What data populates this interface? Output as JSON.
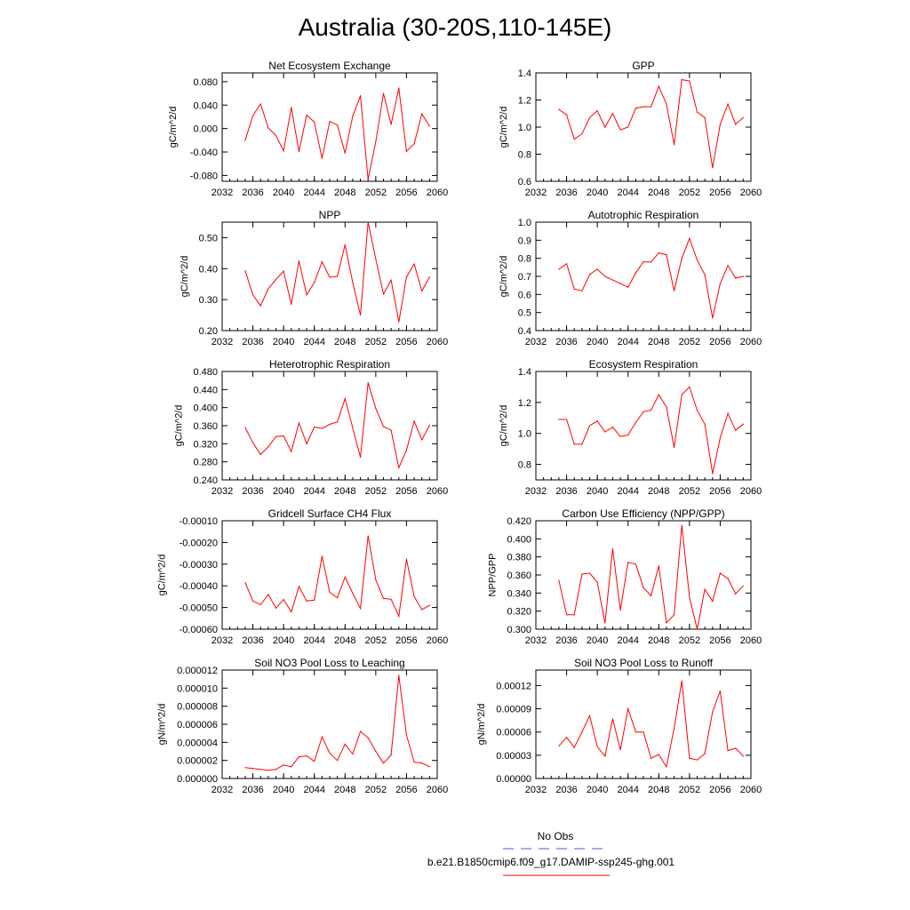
{
  "figure": {
    "title": "Australia (30-20S,110-145E)",
    "line_color": "#ff0000",
    "obs_color": "#5555cc"
  },
  "legend": {
    "obs_label": "No Obs",
    "model_label": "b.e21.B1850cmip6.f09_g17.DAMIP-ssp245-ghg.001"
  },
  "chart_data": [
    {
      "type": "line",
      "title": "Net Ecosystem Exchange",
      "ylabel": "gC/m^2/d",
      "xlim": [
        2032,
        2060
      ],
      "ylim": [
        -0.09,
        0.095
      ],
      "xticks": [
        "2032",
        "2036",
        "2040",
        "2044",
        "2048",
        "2052",
        "2056",
        "2060"
      ],
      "yticks": [
        "0.080",
        "0.040",
        "0.000",
        "-0.040",
        "-0.080"
      ],
      "ytick_values": [
        0.08,
        0.04,
        0.0,
        -0.04,
        -0.08
      ],
      "x": [
        2035,
        2036,
        2037,
        2038,
        2039,
        2040,
        2041,
        2042,
        2043,
        2044,
        2045,
        2046,
        2047,
        2048,
        2049,
        2050,
        2051,
        2052,
        2053,
        2054,
        2055,
        2056,
        2057,
        2058,
        2059
      ],
      "values": [
        -0.02,
        0.022,
        0.042,
        0.001,
        -0.012,
        -0.038,
        0.036,
        -0.039,
        0.023,
        0.011,
        -0.051,
        0.012,
        0.006,
        -0.042,
        0.021,
        0.056,
        -0.087,
        -0.022,
        0.06,
        0.007,
        0.069,
        -0.039,
        -0.026,
        0.025,
        0.004
      ]
    },
    {
      "type": "line",
      "title": "GPP",
      "ylabel": "gC/m^2/d",
      "xlim": [
        2032,
        2060
      ],
      "ylim": [
        0.6,
        1.4
      ],
      "xticks": [
        "2032",
        "2036",
        "2040",
        "2044",
        "2048",
        "2052",
        "2056",
        "2060"
      ],
      "yticks": [
        "1.4",
        "1.2",
        "1.0",
        "0.8",
        "0.6"
      ],
      "ytick_values": [
        1.4,
        1.2,
        1.0,
        0.8,
        0.6
      ],
      "x": [
        2035,
        2036,
        2037,
        2038,
        2039,
        2040,
        2041,
        2042,
        2043,
        2044,
        2045,
        2046,
        2047,
        2048,
        2049,
        2050,
        2051,
        2052,
        2053,
        2054,
        2055,
        2056,
        2057,
        2058,
        2059
      ],
      "values": [
        1.13,
        1.09,
        0.91,
        0.95,
        1.07,
        1.12,
        1.0,
        1.1,
        0.98,
        1.0,
        1.14,
        1.15,
        1.15,
        1.3,
        1.17,
        0.87,
        1.35,
        1.34,
        1.11,
        1.07,
        0.7,
        1.02,
        1.17,
        1.02,
        1.07
      ]
    },
    {
      "type": "line",
      "title": "NPP",
      "ylabel": "gC/m^2/d",
      "xlim": [
        2032,
        2060
      ],
      "ylim": [
        0.2,
        0.55
      ],
      "xticks": [
        "2032",
        "2036",
        "2040",
        "2044",
        "2048",
        "2052",
        "2056",
        "2060"
      ],
      "yticks": [
        "0.50",
        "0.40",
        "0.30",
        "0.20"
      ],
      "ytick_values": [
        0.5,
        0.4,
        0.3,
        0.2
      ],
      "x": [
        2035,
        2036,
        2037,
        2038,
        2039,
        2040,
        2041,
        2042,
        2043,
        2044,
        2045,
        2046,
        2047,
        2048,
        2049,
        2050,
        2051,
        2052,
        2053,
        2054,
        2055,
        2056,
        2057,
        2058,
        2059
      ],
      "values": [
        0.393,
        0.315,
        0.28,
        0.335,
        0.365,
        0.392,
        0.285,
        0.425,
        0.315,
        0.355,
        0.422,
        0.372,
        0.375,
        0.477,
        0.355,
        0.25,
        0.55,
        0.43,
        0.318,
        0.363,
        0.228,
        0.373,
        0.415,
        0.328,
        0.373
      ]
    },
    {
      "type": "line",
      "title": "Autotrophic Respiration",
      "ylabel": "gC/m^2/d",
      "xlim": [
        2032,
        2060
      ],
      "ylim": [
        0.4,
        1.0
      ],
      "xticks": [
        "2032",
        "2036",
        "2040",
        "2044",
        "2048",
        "2052",
        "2056",
        "2060"
      ],
      "yticks": [
        "1.0",
        "0.9",
        "0.8",
        "0.7",
        "0.6",
        "0.5",
        "0.4"
      ],
      "ytick_values": [
        1.0,
        0.9,
        0.8,
        0.7,
        0.6,
        0.5,
        0.4
      ],
      "x": [
        2035,
        2036,
        2037,
        2038,
        2039,
        2040,
        2041,
        2042,
        2043,
        2044,
        2045,
        2046,
        2047,
        2048,
        2049,
        2050,
        2051,
        2052,
        2053,
        2054,
        2055,
        2056,
        2057,
        2058,
        2059
      ],
      "values": [
        0.74,
        0.77,
        0.63,
        0.62,
        0.71,
        0.74,
        0.7,
        0.68,
        0.66,
        0.64,
        0.72,
        0.78,
        0.78,
        0.83,
        0.82,
        0.62,
        0.8,
        0.91,
        0.79,
        0.71,
        0.47,
        0.66,
        0.76,
        0.69,
        0.7
      ]
    },
    {
      "type": "line",
      "title": "Heterotrophic Respiration",
      "ylabel": "gC/m^2/d",
      "xlim": [
        2032,
        2060
      ],
      "ylim": [
        0.24,
        0.48
      ],
      "xticks": [
        "2032",
        "2036",
        "2040",
        "2044",
        "2048",
        "2052",
        "2056",
        "2060"
      ],
      "yticks": [
        "0.480",
        "0.440",
        "0.400",
        "0.360",
        "0.320",
        "0.280",
        "0.240"
      ],
      "ytick_values": [
        0.48,
        0.44,
        0.4,
        0.36,
        0.32,
        0.28,
        0.24
      ],
      "x": [
        2035,
        2036,
        2037,
        2038,
        2039,
        2040,
        2041,
        2042,
        2043,
        2044,
        2045,
        2046,
        2047,
        2048,
        2049,
        2050,
        2051,
        2052,
        2053,
        2054,
        2055,
        2056,
        2057,
        2058,
        2059
      ],
      "values": [
        0.356,
        0.322,
        0.296,
        0.313,
        0.336,
        0.337,
        0.303,
        0.366,
        0.32,
        0.357,
        0.354,
        0.363,
        0.368,
        0.42,
        0.355,
        0.29,
        0.455,
        0.398,
        0.358,
        0.35,
        0.267,
        0.306,
        0.37,
        0.329,
        0.361
      ]
    },
    {
      "type": "line",
      "title": "Ecosystem Respiration",
      "ylabel": "gC/m^2/d",
      "xlim": [
        2032,
        2060
      ],
      "ylim": [
        0.7,
        1.4
      ],
      "xticks": [
        "2032",
        "2036",
        "2040",
        "2044",
        "2048",
        "2052",
        "2056",
        "2060"
      ],
      "yticks": [
        "1.4",
        "1.2",
        "1.0",
        "0.8"
      ],
      "ytick_values": [
        1.4,
        1.2,
        1.0,
        0.8
      ],
      "x": [
        2035,
        2036,
        2037,
        2038,
        2039,
        2040,
        2041,
        2042,
        2043,
        2044,
        2045,
        2046,
        2047,
        2048,
        2049,
        2050,
        2051,
        2052,
        2053,
        2054,
        2055,
        2056,
        2057,
        2058,
        2059
      ],
      "values": [
        1.09,
        1.09,
        0.93,
        0.93,
        1.05,
        1.08,
        1.01,
        1.04,
        0.98,
        0.99,
        1.07,
        1.14,
        1.15,
        1.25,
        1.17,
        0.91,
        1.25,
        1.3,
        1.15,
        1.06,
        0.74,
        0.97,
        1.13,
        1.02,
        1.06
      ]
    },
    {
      "type": "line",
      "title": "Gridcell Surface CH4 Flux",
      "ylabel": "gC/m^2/d",
      "xlim": [
        2032,
        2060
      ],
      "ylim": [
        -0.0006,
        -0.0001
      ],
      "xticks": [
        "2032",
        "2036",
        "2040",
        "2044",
        "2048",
        "2052",
        "2056",
        "2060"
      ],
      "yticks": [
        "-0.00010",
        "-0.00020",
        "-0.00030",
        "-0.00040",
        "-0.00050",
        "-0.00060"
      ],
      "ytick_values": [
        -0.0001,
        -0.0002,
        -0.0003,
        -0.0004,
        -0.0005,
        -0.0006
      ],
      "x": [
        2035,
        2036,
        2037,
        2038,
        2039,
        2040,
        2041,
        2042,
        2043,
        2044,
        2045,
        2046,
        2047,
        2048,
        2049,
        2050,
        2051,
        2052,
        2053,
        2054,
        2055,
        2056,
        2057,
        2058,
        2059
      ],
      "values": [
        -0.000385,
        -0.00047,
        -0.000487,
        -0.00044,
        -0.000503,
        -0.000463,
        -0.00052,
        -0.000403,
        -0.00047,
        -0.000466,
        -0.000264,
        -0.00043,
        -0.000455,
        -0.00036,
        -0.000434,
        -0.000505,
        -0.00017,
        -0.000373,
        -0.000458,
        -0.000462,
        -0.00054,
        -0.000277,
        -0.00045,
        -0.00051,
        -0.00049
      ]
    },
    {
      "type": "line",
      "title": "Carbon Use Efficiency (NPP/GPP)",
      "ylabel": "NPP/GPP",
      "xlim": [
        2032,
        2060
      ],
      "ylim": [
        0.3,
        0.42
      ],
      "xticks": [
        "2032",
        "2036",
        "2040",
        "2044",
        "2048",
        "2052",
        "2056",
        "2060"
      ],
      "yticks": [
        "0.420",
        "0.400",
        "0.380",
        "0.360",
        "0.340",
        "0.320",
        "0.300"
      ],
      "ytick_values": [
        0.42,
        0.4,
        0.38,
        0.36,
        0.34,
        0.32,
        0.3
      ],
      "x": [
        2035,
        2036,
        2037,
        2038,
        2039,
        2040,
        2041,
        2042,
        2043,
        2044,
        2045,
        2046,
        2047,
        2048,
        2049,
        2050,
        2051,
        2052,
        2053,
        2054,
        2055,
        2056,
        2057,
        2058,
        2059
      ],
      "values": [
        0.354,
        0.316,
        0.316,
        0.361,
        0.362,
        0.352,
        0.307,
        0.389,
        0.321,
        0.374,
        0.372,
        0.346,
        0.337,
        0.37,
        0.307,
        0.316,
        0.415,
        0.335,
        0.3,
        0.344,
        0.331,
        0.362,
        0.356,
        0.339,
        0.348
      ]
    },
    {
      "type": "line",
      "title": "Soil NO3 Pool Loss to Leaching",
      "ylabel": "gN/m^2/d",
      "xlim": [
        2032,
        2060
      ],
      "ylim": [
        0.0,
        1.2e-05
      ],
      "xticks": [
        "2032",
        "2036",
        "2040",
        "2044",
        "2048",
        "2052",
        "2056",
        "2060"
      ],
      "yticks": [
        "0.000012",
        "0.000010",
        "0.000008",
        "0.000006",
        "0.000004",
        "0.000002",
        "0.000000"
      ],
      "ytick_values": [
        1.2e-05,
        1e-05,
        8e-06,
        6e-06,
        4e-06,
        2e-06,
        0.0
      ],
      "x": [
        2035,
        2036,
        2037,
        2038,
        2039,
        2040,
        2041,
        2042,
        2043,
        2044,
        2045,
        2046,
        2047,
        2048,
        2049,
        2050,
        2051,
        2052,
        2053,
        2054,
        2055,
        2056,
        2057,
        2058,
        2059
      ],
      "values": [
        1.2e-06,
        1.1e-06,
        1e-06,
        9e-07,
        1e-06,
        1.5e-06,
        1.3e-06,
        2.4e-06,
        2.5e-06,
        1.9e-06,
        4.6e-06,
        2.8e-06,
        2e-06,
        3.8e-06,
        2.7e-06,
        5.2e-06,
        4.5e-06,
        3e-06,
        1.7e-06,
        2.6e-06,
        1.14e-05,
        4.8e-06,
        1.8e-06,
        1.7e-06,
        1.3e-06
      ]
    },
    {
      "type": "line",
      "title": "Soil NO3 Pool Loss to Runoff",
      "ylabel": "gN/m^2/d",
      "xlim": [
        2032,
        2060
      ],
      "ylim": [
        0.0,
        0.00014
      ],
      "xticks": [
        "2032",
        "2036",
        "2040",
        "2044",
        "2048",
        "2052",
        "2056",
        "2060"
      ],
      "yticks": [
        "0.00012",
        "0.00009",
        "0.00006",
        "0.00003",
        "0.00000"
      ],
      "ytick_values": [
        0.00012,
        9e-05,
        6e-05,
        3e-05,
        0.0
      ],
      "x": [
        2035,
        2036,
        2037,
        2038,
        2039,
        2040,
        2041,
        2042,
        2043,
        2044,
        2045,
        2046,
        2047,
        2048,
        2049,
        2050,
        2051,
        2052,
        2053,
        2054,
        2055,
        2056,
        2057,
        2058,
        2059
      ],
      "values": [
        4.2e-05,
        5.3e-05,
        4e-05,
        6e-05,
        8.1e-05,
        4.1e-05,
        2.9e-05,
        7.7e-05,
        3.7e-05,
        9e-05,
        6e-05,
        6e-05,
        2.6e-05,
        3.1e-05,
        1.5e-05,
        6.5e-05,
        0.000126,
        2.6e-05,
        2.4e-05,
        3.2e-05,
        8.6e-05,
        0.000113,
        3.6e-05,
        3.9e-05,
        2.9e-05
      ]
    }
  ]
}
